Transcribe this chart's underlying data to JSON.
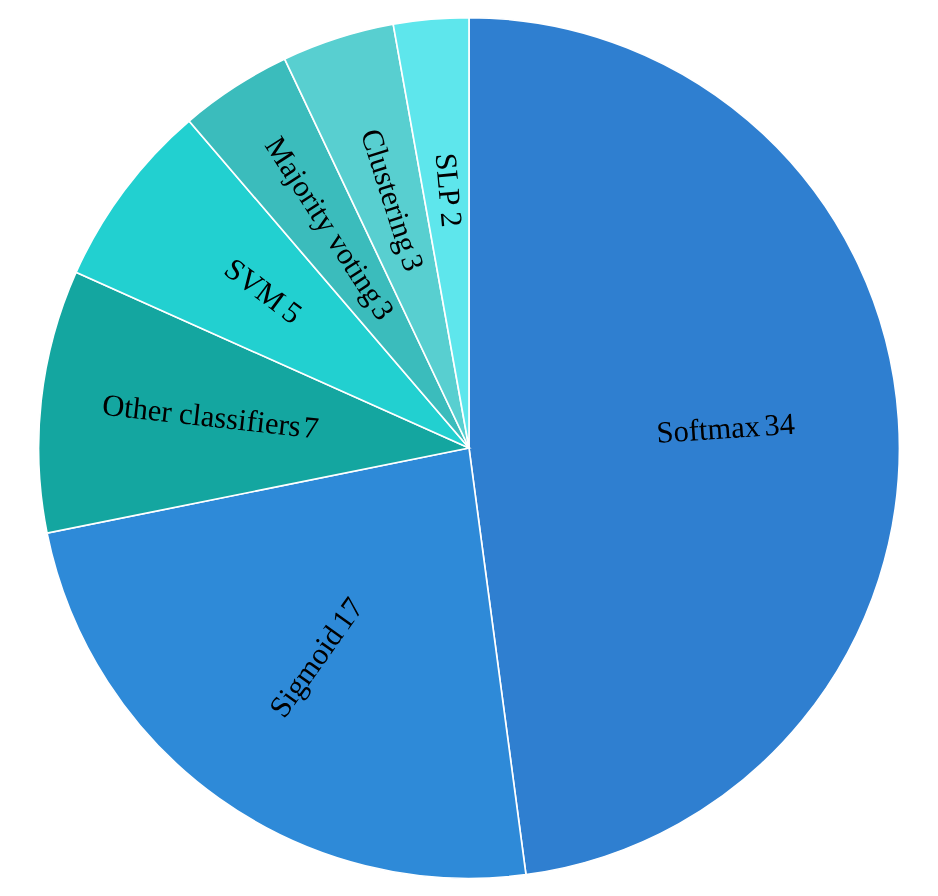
{
  "chart_data": {
    "type": "pie",
    "categories": [
      "Softmax",
      "Sigmoid",
      "Other classifiers",
      "SVM",
      "Majority voting",
      "Clustering",
      "SLP"
    ],
    "values": [
      34,
      17,
      7,
      5,
      3,
      3,
      2
    ],
    "colors": [
      "#2f7fd0",
      "#2e8ad8",
      "#14a6a0",
      "#22d0d0",
      "#3bbcbc",
      "#58cfd0",
      "#5ee6ec"
    ],
    "data_labels": true
  }
}
